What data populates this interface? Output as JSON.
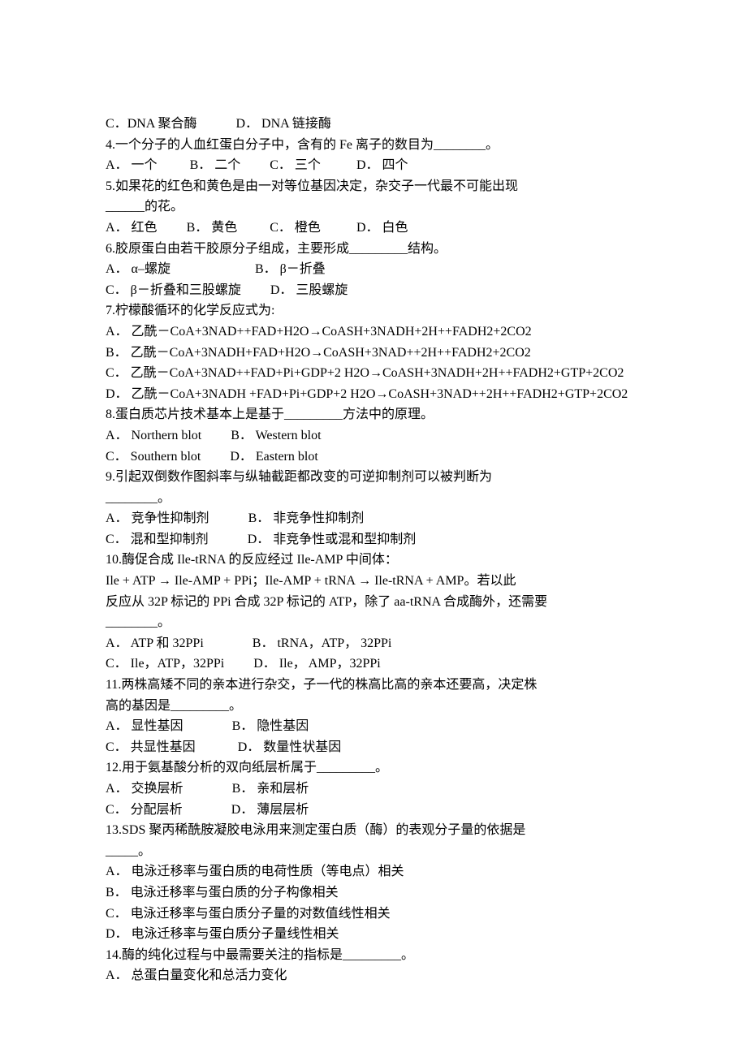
{
  "q3": {
    "optC_label": "C．",
    "optC_text": "DNA 聚合酶",
    "optD_label": "D．",
    "optD_text": " DNA 链接酶"
  },
  "q4": {
    "stem": "4.一个分子的人血红蛋白分子中，含有的 Fe 离子的数目为________。",
    "A": "A． 一个",
    "B": "B． 二个",
    "C": "C． 三个",
    "D": "D． 四个"
  },
  "q5": {
    "stem1": "5.如果花的红色和黄色是由一对等位基因决定，杂交子一代最不可能出现",
    "stem2": "______的花。",
    "A": "A． 红色",
    "B": "B． 黄色",
    "C": "C． 橙色",
    "D": "D． 白色"
  },
  "q6": {
    "stem": "6.胶原蛋白由若干胶原分子组成，主要形成_________结构。",
    "A": "A． α–螺旋",
    "B": "B． β－折叠",
    "C": "C． β－折叠和三股螺旋",
    "D": "D． 三股螺旋"
  },
  "q7": {
    "stem": "7.柠檬酸循环的化学反应式为:",
    "A": "A． 乙酰－CoA+3NAD++FAD+H2O→CoASH+3NADH+2H++FADH2+2CO2",
    "B": "B． 乙酰－CoA+3NADH+FAD+H2O→CoASH+3NAD++2H++FADH2+2CO2",
    "C": "C． 乙酰－CoA+3NAD++FAD+Pi+GDP+2 H2O→CoASH+3NADH+2H++FADH2+GTP+2CO2",
    "D": "D． 乙酰－CoA+3NADH +FAD+Pi+GDP+2 H2O→CoASH+3NAD++2H++FADH2+GTP+2CO2"
  },
  "q8": {
    "stem": "8.蛋白质芯片技术基本上是基于_________方法中的原理。",
    "A": "A． Northern blot",
    "B": "B． Western blot",
    "C": "C． Southern blot",
    "D": "D． Eastern blot"
  },
  "q9": {
    "stem1": "9.引起双倒数作图斜率与纵轴截距都改变的可逆抑制剂可以被判断为",
    "stem2": "________。",
    "A": "A． 竞争性抑制剂",
    "B": "B． 非竞争性抑制剂",
    "C": "C． 混和型抑制剂",
    "D": "D． 非竞争性或混和型抑制剂"
  },
  "q10": {
    "stem1": "10.酶促合成 Ile-tRNA 的反应经过 Ile-AMP 中间体：",
    "stem2": "Ile + ATP → Ile-AMP + PPi；Ile-AMP + tRNA → Ile-tRNA + AMP。若以此",
    "stem3": "反应从 32P 标记的 PPi 合成 32P 标记的 ATP，除了 aa-tRNA 合成酶外，还需要",
    "stem4": "________。",
    "A": "A． ATP 和 32PPi",
    "B": "B． tRNA，ATP， 32PPi",
    "C": "C． Ile，ATP，32PPi",
    "D": "D． Ile， AMP，32PPi"
  },
  "q11": {
    "stem1": "11.两株高矮不同的亲本进行杂交，子一代的株高比高的亲本还要高，决定株",
    "stem2": "高的基因是_________。",
    "A": "A． 显性基因",
    "B": "B． 隐性基因",
    "C": "C． 共显性基因",
    "D": "D． 数量性状基因"
  },
  "q12": {
    "stem": "12.用于氨基酸分析的双向纸层析属于_________。",
    "A": "A． 交换层析",
    "B": "B． 亲和层析",
    "C": "C． 分配层析",
    "D": "D． 薄层层析"
  },
  "q13": {
    "stem1": "13.SDS 聚丙稀酰胺凝胶电泳用来测定蛋白质（酶）的表观分子量的依据是",
    "stem2": "_____。",
    "A": "A． 电泳迁移率与蛋白质的电荷性质（等电点）相关",
    "B": "B． 电泳迁移率与蛋白质的分子构像相关",
    "C": "C． 电泳迁移率与蛋白质分子量的对数值线性相关",
    "D": "D． 电泳迁移率与蛋白质分子量线性相关"
  },
  "q14": {
    "stem": "14.酶的纯化过程与中最需要关注的指标是_________。",
    "A": "A． 总蛋白量变化和总活力变化"
  }
}
